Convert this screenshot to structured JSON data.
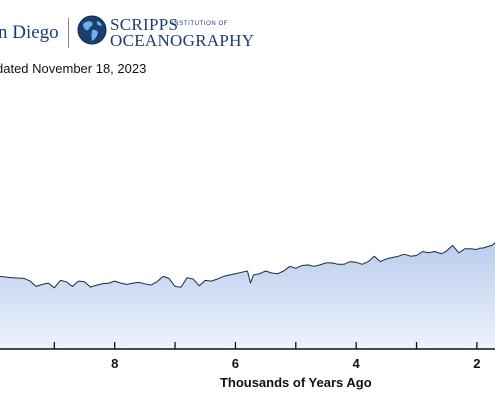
{
  "header": {
    "ucsd_logo_text": "n Diego",
    "scripps_line1": "SCRIPPS",
    "scripps_institution": "INSTITUTION OF",
    "scripps_line2": "OCEANOGRAPHY",
    "updated_text": "dated November 18, 2023"
  },
  "colors": {
    "brand_navy": "#1a3d72",
    "line": "#1f2a3a",
    "fill_top": "#b9cdee",
    "fill_bottom": "#eef3fb"
  },
  "chart_data": {
    "type": "area",
    "title": "",
    "xlabel": "Thousands of Years Ago",
    "ylabel": "",
    "x_reversed": true,
    "xlim": [
      9.9,
      1.7
    ],
    "x_ticks": [
      10,
      9,
      8,
      7,
      6,
      5,
      4,
      3,
      2
    ],
    "x_tick_labels": [
      {
        "x": 8,
        "label": "8"
      },
      {
        "x": 6,
        "label": "6"
      },
      {
        "x": 4,
        "label": "4"
      },
      {
        "x": 2,
        "label": "2"
      }
    ],
    "ylim": [
      250,
      290
    ],
    "grid": false,
    "series": [
      {
        "name": "",
        "x": [
          9.9,
          9.7,
          9.5,
          9.4,
          9.3,
          9.2,
          9.1,
          9.0,
          8.9,
          8.8,
          8.7,
          8.6,
          8.5,
          8.4,
          8.3,
          8.2,
          8.1,
          8.0,
          7.9,
          7.8,
          7.7,
          7.6,
          7.5,
          7.4,
          7.3,
          7.2,
          7.1,
          7.0,
          6.9,
          6.8,
          6.7,
          6.6,
          6.5,
          6.4,
          6.3,
          6.2,
          6.1,
          6.0,
          5.9,
          5.8,
          5.75,
          5.7,
          5.6,
          5.5,
          5.4,
          5.3,
          5.2,
          5.1,
          5.0,
          4.9,
          4.8,
          4.7,
          4.6,
          4.5,
          4.4,
          4.3,
          4.2,
          4.1,
          4.0,
          3.9,
          3.8,
          3.7,
          3.6,
          3.5,
          3.4,
          3.3,
          3.2,
          3.1,
          3.0,
          2.9,
          2.8,
          2.7,
          2.6,
          2.55,
          2.5,
          2.4,
          2.3,
          2.2,
          2.1,
          2.0,
          1.95,
          1.9,
          1.8,
          1.75,
          1.7
        ],
        "y": [
          260.8,
          260.6,
          260.5,
          260.1,
          259.3,
          259.6,
          259.8,
          259.1,
          260.2,
          260.0,
          259.3,
          260.1,
          260.0,
          259.2,
          259.5,
          259.7,
          259.8,
          260.1,
          259.8,
          259.6,
          259.8,
          259.9,
          259.7,
          259.5,
          260.0,
          260.8,
          260.5,
          259.3,
          259.2,
          260.6,
          260.4,
          259.4,
          260.2,
          260.1,
          260.4,
          260.8,
          261.0,
          261.2,
          261.4,
          261.6,
          259.8,
          261.0,
          261.2,
          261.6,
          261.3,
          261.2,
          261.6,
          262.3,
          262.0,
          262.4,
          262.5,
          262.3,
          262.5,
          262.8,
          262.8,
          262.6,
          262.6,
          263.0,
          262.9,
          262.6,
          263.0,
          263.8,
          263.0,
          263.4,
          263.6,
          263.8,
          264.1,
          263.8,
          263.9,
          264.5,
          264.3,
          264.5,
          264.2,
          264.3,
          264.6,
          265.4,
          264.3,
          264.9,
          264.9,
          264.8,
          265.0,
          265.0,
          265.3,
          265.4,
          265.8
        ]
      }
    ]
  }
}
